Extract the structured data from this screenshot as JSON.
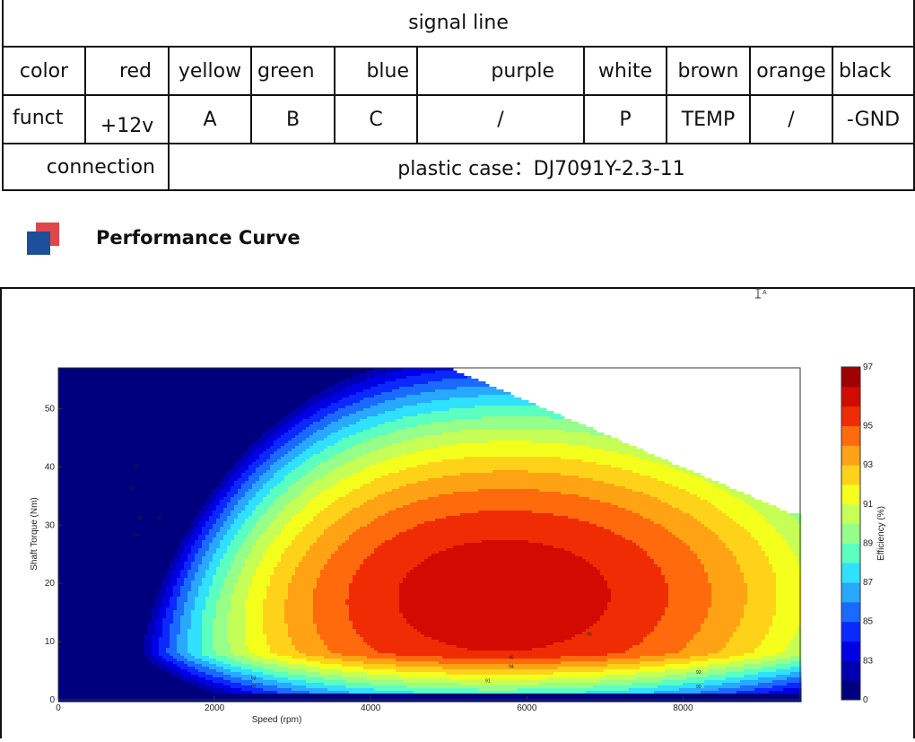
{
  "table": {
    "header": "signal line",
    "row_labels": {
      "color": "color",
      "funct": "funct",
      "connection": "connection"
    },
    "colors": [
      "red",
      "yellow",
      "green",
      "blue",
      "purple",
      "white",
      "brown",
      "orange",
      "black"
    ],
    "functs": [
      "+12v",
      "A",
      "B",
      "C",
      "/",
      "P",
      "TEMP",
      "/",
      "-GND"
    ],
    "connection_value": "plastic case：DJ7091Y-2.3-11"
  },
  "section": {
    "title": "Performance Curve",
    "logo_colors": {
      "back": "#e04848",
      "front": "#1b4f99"
    }
  },
  "chart_data": {
    "type": "contour",
    "xlabel": "Speed  (rpm)",
    "ylabel": "Shaft Torque  (Nm)",
    "xlim": [
      0,
      9500
    ],
    "ylim": [
      0,
      57
    ],
    "xticks": [
      0,
      2000,
      4000,
      6000,
      8000
    ],
    "yticks": [
      0,
      10,
      20,
      30,
      40,
      50
    ],
    "colorbar": {
      "label": "Efficiency (%)",
      "ticks": [
        0,
        83,
        85,
        87,
        89,
        91,
        93,
        95,
        97
      ],
      "levels": [
        0,
        82,
        83,
        84,
        85,
        86,
        87,
        88,
        89,
        90,
        91,
        92,
        93,
        94,
        95,
        96,
        97
      ]
    },
    "model": {
      "peak_speed": 5600,
      "peak_torque": 18,
      "peak_efficiency": 96.8
    },
    "contour_labels": [
      {
        "x": 1000,
        "y": 40,
        "text": "85"
      },
      {
        "x": 950,
        "y": 36,
        "text": "87"
      },
      {
        "x": 1050,
        "y": 31,
        "text": "88"
      },
      {
        "x": 1300,
        "y": 31,
        "text": "89"
      },
      {
        "x": 1000,
        "y": 28,
        "text": "86"
      },
      {
        "x": 6800,
        "y": 11,
        "text": "96"
      },
      {
        "x": 5800,
        "y": 7,
        "text": "95"
      },
      {
        "x": 5800,
        "y": 5.5,
        "text": "94"
      },
      {
        "x": 5500,
        "y": 3,
        "text": "91"
      },
      {
        "x": 2500,
        "y": 3.5,
        "text": "93"
      },
      {
        "x": 2500,
        "y": 2,
        "text": "90"
      },
      {
        "x": 8200,
        "y": 4.5,
        "text": "92"
      },
      {
        "x": 8200,
        "y": 2,
        "text": "90"
      }
    ]
  }
}
